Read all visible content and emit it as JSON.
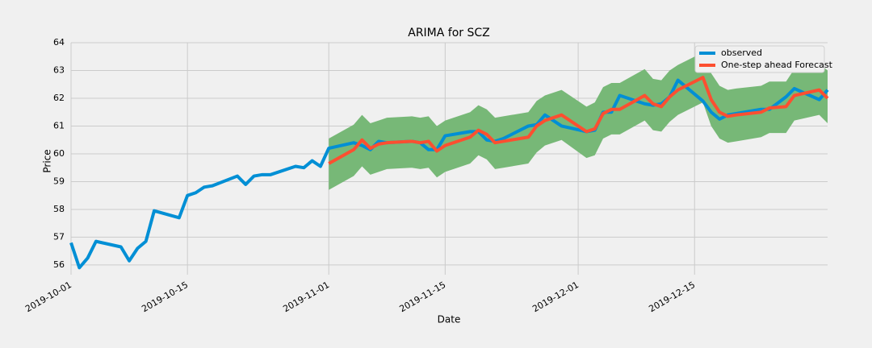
{
  "chart_data": {
    "type": "line",
    "title": "ARIMA for SCZ",
    "x_label": "Date",
    "y_label": "Price",
    "x": [
      "2019-10-01",
      "2019-10-02",
      "2019-10-03",
      "2019-10-04",
      "2019-10-07",
      "2019-10-08",
      "2019-10-09",
      "2019-10-10",
      "2019-10-11",
      "2019-10-14",
      "2019-10-15",
      "2019-10-16",
      "2019-10-17",
      "2019-10-18",
      "2019-10-21",
      "2019-10-22",
      "2019-10-23",
      "2019-10-24",
      "2019-10-25",
      "2019-10-28",
      "2019-10-29",
      "2019-10-30",
      "2019-10-31",
      "2019-11-01",
      "2019-11-04",
      "2019-11-05",
      "2019-11-06",
      "2019-11-07",
      "2019-11-08",
      "2019-11-11",
      "2019-11-12",
      "2019-11-13",
      "2019-11-14",
      "2019-11-15",
      "2019-11-18",
      "2019-11-19",
      "2019-11-20",
      "2019-11-21",
      "2019-11-22",
      "2019-11-25",
      "2019-11-26",
      "2019-11-27",
      "2019-11-29",
      "2019-12-02",
      "2019-12-03",
      "2019-12-04",
      "2019-12-05",
      "2019-12-06",
      "2019-12-09",
      "2019-12-10",
      "2019-12-11",
      "2019-12-12",
      "2019-12-13",
      "2019-12-16",
      "2019-12-17",
      "2019-12-18",
      "2019-12-19",
      "2019-12-20",
      "2019-12-23",
      "2019-12-24",
      "2019-12-26",
      "2019-12-27",
      "2019-12-30",
      "2019-12-31"
    ],
    "series": [
      {
        "name": "observed",
        "color": "#008fd5",
        "values": [
          56.8,
          55.9,
          56.25,
          56.85,
          56.65,
          56.15,
          56.6,
          56.85,
          57.95,
          57.7,
          58.5,
          58.6,
          58.8,
          58.85,
          59.2,
          58.9,
          59.2,
          59.25,
          59.25,
          59.55,
          59.5,
          59.75,
          59.55,
          60.2,
          60.4,
          60.3,
          60.15,
          60.45,
          60.4,
          60.45,
          60.4,
          60.15,
          60.15,
          60.65,
          60.8,
          60.8,
          60.5,
          60.45,
          60.55,
          61.0,
          61.05,
          61.4,
          61.0,
          60.8,
          60.85,
          61.5,
          61.5,
          62.1,
          61.8,
          61.75,
          61.8,
          62.05,
          62.65,
          61.9,
          61.5,
          61.25,
          61.4,
          61.45,
          61.6,
          61.6,
          62.05,
          62.35,
          61.95,
          62.3
        ]
      },
      {
        "name": "One-step ahead Forecast",
        "color": "#fc4f30",
        "values": [
          null,
          null,
          null,
          null,
          null,
          null,
          null,
          null,
          null,
          null,
          null,
          null,
          null,
          null,
          null,
          null,
          null,
          null,
          null,
          null,
          null,
          null,
          null,
          59.65,
          60.15,
          60.5,
          60.2,
          60.35,
          60.4,
          60.45,
          60.4,
          60.45,
          60.1,
          60.3,
          60.6,
          60.85,
          60.7,
          60.4,
          60.45,
          60.6,
          61.0,
          61.2,
          61.4,
          60.8,
          60.9,
          61.45,
          61.6,
          61.6,
          62.1,
          61.8,
          61.7,
          62.05,
          62.3,
          62.75,
          61.95,
          61.5,
          61.35,
          61.4,
          61.5,
          61.65,
          61.7,
          62.1,
          62.3,
          62.0
        ]
      }
    ],
    "band": {
      "color": "#77b877",
      "lower": [
        null,
        null,
        null,
        null,
        null,
        null,
        null,
        null,
        null,
        null,
        null,
        null,
        null,
        null,
        null,
        null,
        null,
        null,
        null,
        null,
        null,
        null,
        null,
        58.7,
        59.2,
        59.55,
        59.25,
        59.35,
        59.45,
        59.5,
        59.45,
        59.5,
        59.15,
        59.35,
        59.65,
        59.95,
        59.8,
        59.45,
        59.5,
        59.65,
        60.05,
        60.3,
        60.5,
        59.85,
        59.95,
        60.55,
        60.7,
        60.7,
        61.2,
        60.85,
        60.8,
        61.15,
        61.4,
        61.85,
        61.0,
        60.55,
        60.4,
        60.45,
        60.6,
        60.75,
        60.75,
        61.2,
        61.4,
        61.1
      ],
      "upper": [
        null,
        null,
        null,
        null,
        null,
        null,
        null,
        null,
        null,
        null,
        null,
        null,
        null,
        null,
        null,
        null,
        null,
        null,
        null,
        null,
        null,
        null,
        null,
        60.55,
        61.05,
        61.4,
        61.1,
        61.2,
        61.3,
        61.35,
        61.3,
        61.35,
        61.0,
        61.2,
        61.5,
        61.75,
        61.6,
        61.3,
        61.35,
        61.5,
        61.9,
        62.1,
        62.3,
        61.7,
        61.85,
        62.4,
        62.55,
        62.55,
        63.05,
        62.7,
        62.65,
        63.0,
        63.2,
        63.65,
        62.9,
        62.45,
        62.3,
        62.35,
        62.45,
        62.6,
        62.6,
        63.05,
        63.25,
        63.0
      ]
    },
    "xlim": [
      "2019-10-01",
      "2019-12-31"
    ],
    "xticks": [
      "2019-10-01",
      "2019-10-15",
      "2019-11-01",
      "2019-11-15",
      "2019-12-01",
      "2019-12-15"
    ],
    "ylim": [
      55.65,
      64
    ],
    "yticks": [
      56,
      57,
      58,
      59,
      60,
      61,
      62,
      63,
      64
    ],
    "grid": true,
    "legend": "upper right"
  }
}
